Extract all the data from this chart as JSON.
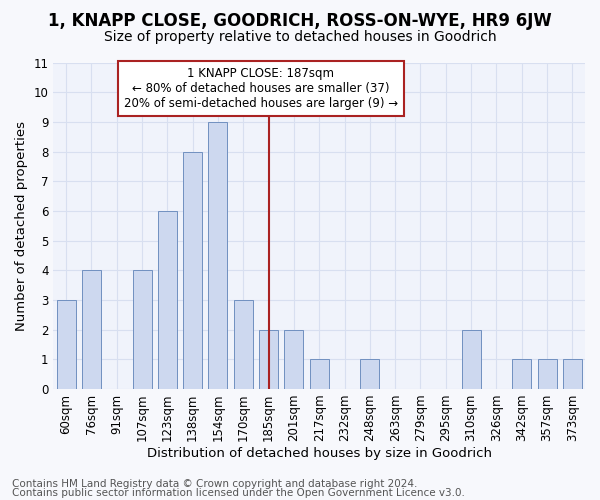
{
  "title": "1, KNAPP CLOSE, GOODRICH, ROSS-ON-WYE, HR9 6JW",
  "subtitle": "Size of property relative to detached houses in Goodrich",
  "xlabel": "Distribution of detached houses by size in Goodrich",
  "ylabel": "Number of detached properties",
  "categories": [
    "60sqm",
    "76sqm",
    "91sqm",
    "107sqm",
    "123sqm",
    "138sqm",
    "154sqm",
    "170sqm",
    "185sqm",
    "201sqm",
    "217sqm",
    "232sqm",
    "248sqm",
    "263sqm",
    "279sqm",
    "295sqm",
    "310sqm",
    "326sqm",
    "342sqm",
    "357sqm",
    "373sqm"
  ],
  "values": [
    3,
    4,
    0,
    4,
    6,
    8,
    9,
    3,
    2,
    2,
    1,
    0,
    1,
    0,
    0,
    0,
    2,
    0,
    1,
    1,
    1
  ],
  "bar_color": "#cdd8ef",
  "bar_edge_color": "#7090c0",
  "vline_x_idx": 8,
  "vline_color": "#aa2222",
  "annotation_text": "1 KNAPP CLOSE: 187sqm\n← 80% of detached houses are smaller (37)\n20% of semi-detached houses are larger (9) →",
  "annotation_box_color": "#ffffff",
  "annotation_box_edge": "#aa2222",
  "ylim": [
    0,
    11
  ],
  "yticks": [
    0,
    1,
    2,
    3,
    4,
    5,
    6,
    7,
    8,
    9,
    10,
    11
  ],
  "footer_line1": "Contains HM Land Registry data © Crown copyright and database right 2024.",
  "footer_line2": "Contains public sector information licensed under the Open Government Licence v3.0.",
  "bg_color": "#f7f8fc",
  "plot_bg": "#f0f3fb",
  "grid_color": "#d8dff0",
  "title_fontsize": 12,
  "subtitle_fontsize": 10,
  "axis_label_fontsize": 9.5,
  "tick_fontsize": 8.5,
  "footer_fontsize": 7.5,
  "annotation_fontsize": 8.5
}
